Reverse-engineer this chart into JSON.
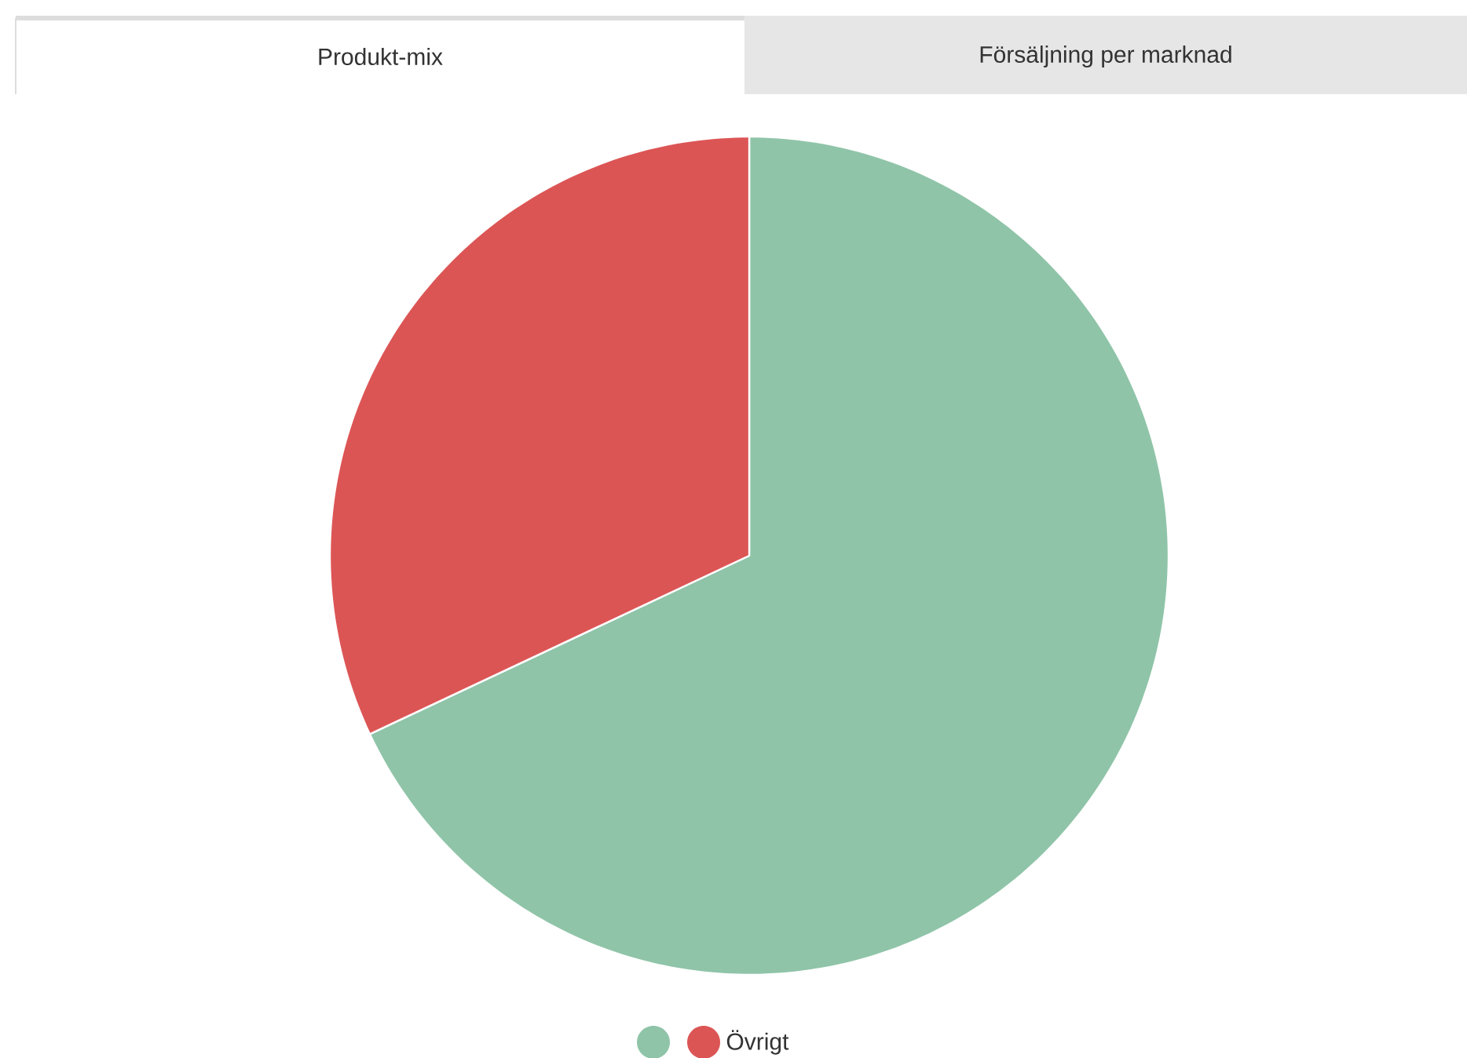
{
  "chart_data": {
    "type": "pie",
    "title": "Produkt-mix",
    "annotations": [
      "Försäljning per marknad"
    ],
    "categories": [
      null,
      "Övrigt"
    ],
    "values": [
      68,
      32
    ],
    "colors": [
      "#8fc4a8",
      "#dc5555"
    ],
    "legend": "bottom"
  }
}
